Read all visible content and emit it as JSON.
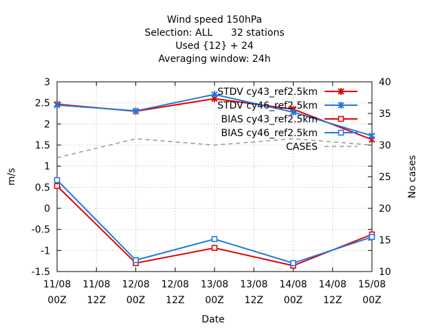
{
  "chart_data": {
    "type": "line",
    "title_lines": [
      "Wind speed 150hPa",
      "Selection: ALL      32 stations",
      "Used {12} + 24",
      "Averaging window: 24h"
    ],
    "xlabel": "Date",
    "ylabel": "m/s",
    "y2label": "No cases",
    "x": [
      "11/08 00Z",
      "11/08 12Z",
      "12/08 00Z",
      "12/08 12Z",
      "13/08 00Z",
      "13/08 12Z",
      "14/08 00Z",
      "14/08 12Z",
      "15/08 00Z"
    ],
    "x_ticks": [
      {
        "top": "11/08",
        "bottom": "00Z"
      },
      {
        "top": "11/08",
        "bottom": "12Z"
      },
      {
        "top": "12/08",
        "bottom": "00Z"
      },
      {
        "top": "12/08",
        "bottom": "12Z"
      },
      {
        "top": "13/08",
        "bottom": "00Z"
      },
      {
        "top": "13/08",
        "bottom": "12Z"
      },
      {
        "top": "14/08",
        "bottom": "00Z"
      },
      {
        "top": "14/08",
        "bottom": "12Z"
      },
      {
        "top": "15/08",
        "bottom": "00Z"
      }
    ],
    "ylim": [
      -1.5,
      3
    ],
    "y_ticks": [
      "-1.5",
      "-1",
      "-0.5",
      "0",
      "0.5",
      "1",
      "1.5",
      "2",
      "2.5",
      "3"
    ],
    "y2lim": [
      10,
      40
    ],
    "y2_ticks": [
      "10",
      "15",
      "20",
      "25",
      "30",
      "35",
      "40"
    ],
    "grid": true,
    "legend_position": "top-right",
    "series": [
      {
        "name": "STDV cy43_ref2.5km",
        "color": "#e00000",
        "marker": "star",
        "axis": "y",
        "points": [
          [
            0,
            2.47
          ],
          [
            2,
            2.3
          ],
          [
            4,
            2.6
          ],
          [
            6,
            2.35
          ],
          [
            8,
            1.63
          ]
        ]
      },
      {
        "name": "STDV cy46_ref2.5km",
        "color": "#1e78e0",
        "marker": "star",
        "axis": "y",
        "points": [
          [
            0,
            2.45
          ],
          [
            2,
            2.31
          ],
          [
            4,
            2.7
          ],
          [
            6,
            2.28
          ],
          [
            8,
            1.72
          ]
        ]
      },
      {
        "name": "BIAS cy43_ref2.5km",
        "color": "#e00000",
        "marker": "square",
        "axis": "y",
        "points": [
          [
            0,
            0.53
          ],
          [
            2,
            -1.3
          ],
          [
            4,
            -0.94
          ],
          [
            6,
            -1.36
          ],
          [
            8,
            -0.62
          ]
        ]
      },
      {
        "name": "BIAS cy46_ref2.5km",
        "color": "#1e78e0",
        "marker": "square",
        "axis": "y",
        "points": [
          [
            0,
            0.67
          ],
          [
            2,
            -1.23
          ],
          [
            4,
            -0.73
          ],
          [
            6,
            -1.3
          ],
          [
            8,
            -0.68
          ]
        ]
      },
      {
        "name": "CASES",
        "color": "#888888",
        "marker": "none",
        "dashed": true,
        "axis": "y2",
        "points": [
          [
            0,
            28
          ],
          [
            2,
            31
          ],
          [
            4,
            30
          ],
          [
            6,
            31
          ],
          [
            8,
            30
          ]
        ]
      }
    ]
  }
}
